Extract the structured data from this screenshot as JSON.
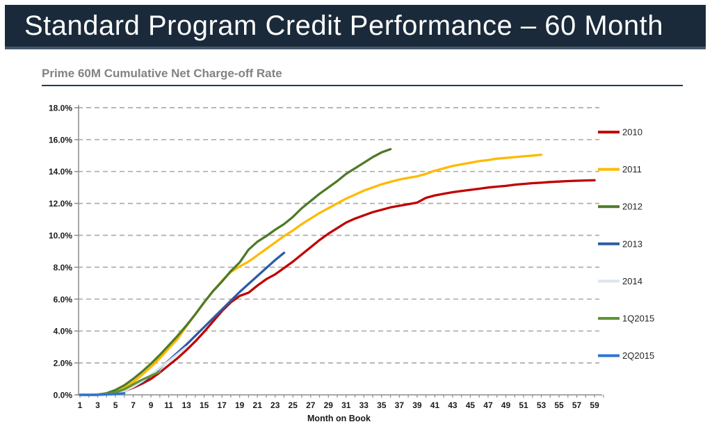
{
  "header": {
    "title": "Standard Program Credit Performance – 60 Month"
  },
  "chart_title": "Prime 60M Cumulative Net Charge-off Rate",
  "chart_data": {
    "type": "line",
    "title": "Prime 60M Cumulative Net Charge-off Rate",
    "xlabel": "Month on Book",
    "ylabel": "",
    "xlim": [
      1,
      60
    ],
    "ylim": [
      0,
      18
    ],
    "y_tick_step": 2,
    "y_tick_labels": [
      "0.0%",
      "2.0%",
      "4.0%",
      "6.0%",
      "8.0%",
      "10.0%",
      "12.0%",
      "14.0%",
      "16.0%",
      "18.0%"
    ],
    "x_tick_labels": [
      1,
      3,
      5,
      7,
      9,
      11,
      13,
      15,
      17,
      19,
      21,
      23,
      25,
      27,
      29,
      31,
      33,
      35,
      37,
      39,
      41,
      43,
      45,
      47,
      49,
      51,
      53,
      55,
      57,
      59
    ],
    "grid": "horizontal-dashed",
    "legend_position": "right",
    "series": [
      {
        "name": "2010",
        "color": "#C00000",
        "start_month": 1,
        "values": [
          0,
          0,
          0,
          0.05,
          0.1,
          0.25,
          0.45,
          0.7,
          1.0,
          1.4,
          1.85,
          2.3,
          2.8,
          3.35,
          3.95,
          4.6,
          5.25,
          5.8,
          6.2,
          6.4,
          6.85,
          7.25,
          7.55,
          7.95,
          8.35,
          8.8,
          9.25,
          9.7,
          10.1,
          10.45,
          10.8,
          11.05,
          11.25,
          11.45,
          11.6,
          11.75,
          11.85,
          11.95,
          12.05,
          12.35,
          12.5,
          12.6,
          12.7,
          12.78,
          12.85,
          12.92,
          13.0,
          13.05,
          13.1,
          13.17,
          13.22,
          13.27,
          13.3,
          13.34,
          13.37,
          13.4,
          13.42,
          13.44,
          13.45
        ]
      },
      {
        "name": "2011",
        "color": "#FFB900",
        "start_month": 1,
        "values": [
          0,
          0,
          0,
          0.05,
          0.2,
          0.45,
          0.8,
          1.25,
          1.75,
          2.3,
          2.9,
          3.5,
          4.3,
          5.05,
          5.8,
          6.5,
          7.15,
          7.7,
          8.05,
          8.35,
          8.75,
          9.15,
          9.55,
          9.95,
          10.3,
          10.7,
          11.05,
          11.4,
          11.7,
          12.0,
          12.3,
          12.55,
          12.8,
          13.0,
          13.2,
          13.35,
          13.5,
          13.6,
          13.7,
          13.85,
          14.05,
          14.2,
          14.35,
          14.45,
          14.55,
          14.65,
          14.72,
          14.8,
          14.85,
          14.9,
          14.95,
          15.0,
          15.05
        ]
      },
      {
        "name": "2012",
        "color": "#4E7A28",
        "start_month": 1,
        "values": [
          0,
          0,
          0.02,
          0.1,
          0.3,
          0.6,
          1.0,
          1.45,
          1.95,
          2.5,
          3.1,
          3.7,
          4.35,
          5.05,
          5.8,
          6.5,
          7.1,
          7.75,
          8.3,
          9.1,
          9.6,
          9.95,
          10.35,
          10.7,
          11.15,
          11.7,
          12.15,
          12.6,
          13.0,
          13.4,
          13.85,
          14.2,
          14.55,
          14.9,
          15.2,
          15.4
        ]
      },
      {
        "name": "2013",
        "color": "#2B5CA9",
        "start_month": 1,
        "values": [
          0,
          0,
          0,
          0.05,
          0.1,
          0.25,
          0.5,
          0.8,
          1.2,
          1.65,
          2.15,
          2.65,
          3.15,
          3.7,
          4.25,
          4.8,
          5.35,
          5.9,
          6.45,
          6.95,
          7.45,
          7.95,
          8.45,
          8.9
        ]
      },
      {
        "name": "2014",
        "color": "#DCE5EF",
        "start_month": 1,
        "values": [
          0,
          0,
          0,
          0.05,
          0.1,
          0.25,
          0.5,
          0.85,
          1.25,
          1.7,
          2.1,
          2.55,
          3.0
        ]
      },
      {
        "name": "1Q2015",
        "color": "#5F9434",
        "start_month": 1,
        "values": [
          0,
          0,
          0,
          0.05,
          0.15,
          0.35,
          0.65,
          0.95,
          1.2,
          1.45
        ]
      },
      {
        "name": "2Q2015",
        "color": "#2E75D3",
        "start_month": 1,
        "values": [
          0,
          0,
          0,
          0.02,
          0.05,
          0.1
        ]
      }
    ]
  },
  "style": {
    "header_bg": "#1b2a3a",
    "header_border": "#44576b",
    "subtitle_color": "#808285",
    "rule_color": "#1e3a5c",
    "gridline_color": "#adadad",
    "axis_color": "#8c8c8c",
    "tick_label_color": "#1a1a1a",
    "legend_label_color": "#262626"
  }
}
